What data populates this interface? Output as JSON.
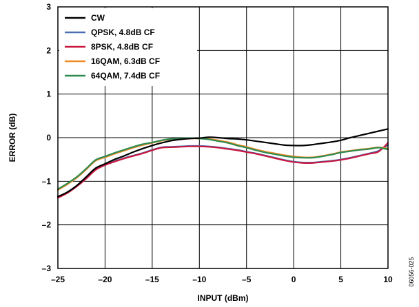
{
  "figure_id": "06056-025",
  "chart_data": {
    "type": "line",
    "xlabel": "INPUT (dBm)",
    "ylabel": "ERROR (dB)",
    "xlim": [
      -25,
      10
    ],
    "ylim": [
      -3,
      3
    ],
    "xticks": [
      -25,
      -20,
      -15,
      -10,
      -5,
      0,
      5,
      10
    ],
    "yticks": [
      -3,
      -2,
      -1,
      0,
      1,
      2,
      3
    ],
    "xtick_labels": [
      "–25",
      "–20",
      "–15",
      "–10",
      "–5",
      "0",
      "5",
      "10"
    ],
    "ytick_labels": [
      "–3",
      "–2",
      "–1",
      "0",
      "1",
      "2",
      "3"
    ],
    "grid": true,
    "legend_position": "top-left",
    "series": [
      {
        "name": "CW",
        "color": "#000000",
        "points": [
          [
            -25,
            -1.35
          ],
          [
            -24,
            -1.25
          ],
          [
            -23,
            -1.1
          ],
          [
            -22,
            -0.9
          ],
          [
            -21,
            -0.7
          ],
          [
            -20,
            -0.6
          ],
          [
            -19,
            -0.5
          ],
          [
            -18,
            -0.42
          ],
          [
            -17,
            -0.33
          ],
          [
            -16,
            -0.25
          ],
          [
            -15,
            -0.18
          ],
          [
            -14,
            -0.12
          ],
          [
            -13,
            -0.07
          ],
          [
            -12,
            -0.04
          ],
          [
            -11,
            -0.02
          ],
          [
            -10,
            -0.01
          ],
          [
            -9,
            0.01
          ],
          [
            -8,
            0.0
          ],
          [
            -7,
            -0.02
          ],
          [
            -6,
            -0.03
          ],
          [
            -5,
            -0.05
          ],
          [
            -4,
            -0.08
          ],
          [
            -3,
            -0.11
          ],
          [
            -2,
            -0.14
          ],
          [
            -1,
            -0.17
          ],
          [
            0,
            -0.18
          ],
          [
            1,
            -0.18
          ],
          [
            2,
            -0.16
          ],
          [
            3,
            -0.13
          ],
          [
            4,
            -0.1
          ],
          [
            5,
            -0.06
          ],
          [
            6,
            0.0
          ],
          [
            7,
            0.05
          ],
          [
            8,
            0.1
          ],
          [
            9,
            0.15
          ],
          [
            10,
            0.2
          ]
        ]
      },
      {
        "name": "QPSK, 4.8dB CF",
        "color": "#4a6fb5",
        "points": [
          [
            -25,
            -1.37
          ],
          [
            -24,
            -1.25
          ],
          [
            -23,
            -1.1
          ],
          [
            -22,
            -0.92
          ],
          [
            -21,
            -0.72
          ],
          [
            -20,
            -0.62
          ],
          [
            -19,
            -0.54
          ],
          [
            -18,
            -0.47
          ],
          [
            -17,
            -0.41
          ],
          [
            -16,
            -0.35
          ],
          [
            -15,
            -0.28
          ],
          [
            -14,
            -0.22
          ],
          [
            -13,
            -0.21
          ],
          [
            -12,
            -0.2
          ],
          [
            -11,
            -0.19
          ],
          [
            -10,
            -0.19
          ],
          [
            -9,
            -0.2
          ],
          [
            -8,
            -0.22
          ],
          [
            -7,
            -0.25
          ],
          [
            -6,
            -0.28
          ],
          [
            -5,
            -0.32
          ],
          [
            -4,
            -0.36
          ],
          [
            -3,
            -0.41
          ],
          [
            -2,
            -0.46
          ],
          [
            -1,
            -0.51
          ],
          [
            0,
            -0.55
          ],
          [
            1,
            -0.57
          ],
          [
            2,
            -0.57
          ],
          [
            3,
            -0.55
          ],
          [
            4,
            -0.53
          ],
          [
            5,
            -0.5
          ],
          [
            6,
            -0.46
          ],
          [
            7,
            -0.41
          ],
          [
            8,
            -0.36
          ],
          [
            9,
            -0.3
          ],
          [
            10,
            -0.17
          ]
        ]
      },
      {
        "name": "8PSK, 4.8dB CF",
        "color": "#c8173f",
        "points": [
          [
            -25,
            -1.38
          ],
          [
            -24,
            -1.27
          ],
          [
            -23,
            -1.12
          ],
          [
            -22,
            -0.94
          ],
          [
            -21,
            -0.74
          ],
          [
            -20,
            -0.63
          ],
          [
            -19,
            -0.55
          ],
          [
            -18,
            -0.48
          ],
          [
            -17,
            -0.42
          ],
          [
            -16,
            -0.36
          ],
          [
            -15,
            -0.29
          ],
          [
            -14,
            -0.23
          ],
          [
            -13,
            -0.22
          ],
          [
            -12,
            -0.21
          ],
          [
            -11,
            -0.2
          ],
          [
            -10,
            -0.2
          ],
          [
            -9,
            -0.21
          ],
          [
            -8,
            -0.23
          ],
          [
            -7,
            -0.26
          ],
          [
            -6,
            -0.29
          ],
          [
            -5,
            -0.33
          ],
          [
            -4,
            -0.37
          ],
          [
            -3,
            -0.42
          ],
          [
            -2,
            -0.47
          ],
          [
            -1,
            -0.52
          ],
          [
            0,
            -0.56
          ],
          [
            1,
            -0.58
          ],
          [
            2,
            -0.58
          ],
          [
            3,
            -0.56
          ],
          [
            4,
            -0.54
          ],
          [
            5,
            -0.51
          ],
          [
            6,
            -0.47
          ],
          [
            7,
            -0.42
          ],
          [
            8,
            -0.37
          ],
          [
            9,
            -0.32
          ],
          [
            10,
            -0.12
          ]
        ]
      },
      {
        "name": "16QAM, 6.3dB CF",
        "color": "#f08a24",
        "points": [
          [
            -25,
            -1.2
          ],
          [
            -24,
            -1.07
          ],
          [
            -23,
            -0.92
          ],
          [
            -22,
            -0.73
          ],
          [
            -21,
            -0.53
          ],
          [
            -20,
            -0.45
          ],
          [
            -19,
            -0.37
          ],
          [
            -18,
            -0.3
          ],
          [
            -17,
            -0.23
          ],
          [
            -16,
            -0.17
          ],
          [
            -15,
            -0.12
          ],
          [
            -14,
            -0.07
          ],
          [
            -13,
            -0.04
          ],
          [
            -12,
            -0.03
          ],
          [
            -11,
            -0.02
          ],
          [
            -10,
            -0.02
          ],
          [
            -9,
            -0.03
          ],
          [
            -8,
            -0.06
          ],
          [
            -7,
            -0.1
          ],
          [
            -6,
            -0.16
          ],
          [
            -5,
            -0.21
          ],
          [
            -4,
            -0.27
          ],
          [
            -3,
            -0.32
          ],
          [
            -2,
            -0.36
          ],
          [
            -1,
            -0.4
          ],
          [
            0,
            -0.43
          ],
          [
            1,
            -0.45
          ],
          [
            2,
            -0.45
          ],
          [
            3,
            -0.42
          ],
          [
            4,
            -0.38
          ],
          [
            5,
            -0.33
          ],
          [
            6,
            -0.3
          ],
          [
            7,
            -0.27
          ],
          [
            8,
            -0.25
          ],
          [
            9,
            -0.22
          ],
          [
            10,
            -0.25
          ]
        ]
      },
      {
        "name": "64QAM, 7.4dB CF",
        "color": "#2e8b4f",
        "points": [
          [
            -25,
            -1.18
          ],
          [
            -24,
            -1.05
          ],
          [
            -23,
            -0.9
          ],
          [
            -22,
            -0.71
          ],
          [
            -21,
            -0.51
          ],
          [
            -20,
            -0.43
          ],
          [
            -19,
            -0.35
          ],
          [
            -18,
            -0.28
          ],
          [
            -17,
            -0.21
          ],
          [
            -16,
            -0.15
          ],
          [
            -15,
            -0.11
          ],
          [
            -14,
            -0.06
          ],
          [
            -13,
            -0.03
          ],
          [
            -12,
            -0.02
          ],
          [
            -11,
            -0.01
          ],
          [
            -10,
            -0.02
          ],
          [
            -9,
            -0.04
          ],
          [
            -8,
            -0.08
          ],
          [
            -7,
            -0.12
          ],
          [
            -6,
            -0.18
          ],
          [
            -5,
            -0.23
          ],
          [
            -4,
            -0.29
          ],
          [
            -3,
            -0.34
          ],
          [
            -2,
            -0.38
          ],
          [
            -1,
            -0.42
          ],
          [
            0,
            -0.45
          ],
          [
            1,
            -0.46
          ],
          [
            2,
            -0.46
          ],
          [
            3,
            -0.43
          ],
          [
            4,
            -0.39
          ],
          [
            5,
            -0.34
          ],
          [
            6,
            -0.31
          ],
          [
            7,
            -0.28
          ],
          [
            8,
            -0.26
          ],
          [
            9,
            -0.23
          ],
          [
            10,
            -0.27
          ]
        ]
      }
    ]
  }
}
